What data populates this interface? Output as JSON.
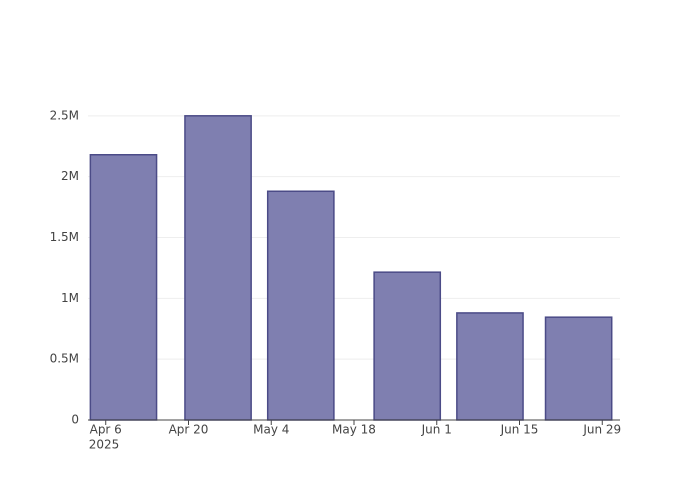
{
  "chart_data": {
    "type": "bar",
    "x": [
      "2025-04-09",
      "2025-04-25",
      "2025-05-09",
      "2025-05-27",
      "2025-06-10",
      "2025-06-25"
    ],
    "values": [
      2180000,
      2500000,
      1880000,
      1215000,
      880000,
      845000
    ],
    "color": "#7f7fb0",
    "xlim": [
      "2025-04-03",
      "2025-07-02"
    ],
    "xticks": [
      {
        "value": "2025-04-06",
        "label": "Apr 6"
      },
      {
        "value": "2025-04-20",
        "label": "Apr 20"
      },
      {
        "value": "2025-05-04",
        "label": "May 4"
      },
      {
        "value": "2025-05-18",
        "label": "May 18"
      },
      {
        "value": "2025-06-01",
        "label": "Jun 1"
      },
      {
        "value": "2025-06-15",
        "label": "Jun 15"
      },
      {
        "value": "2025-06-29",
        "label": "Jun 29"
      }
    ],
    "x_year_label": "2025",
    "ylim": [
      0,
      2630000
    ],
    "yticks": [
      0,
      {
        "value": 500000,
        "label": "0.5M"
      },
      {
        "value": 1000000,
        "label": "1M"
      },
      {
        "value": 1500000,
        "label": "1.5M"
      },
      {
        "value": 2000000,
        "label": "2M"
      },
      {
        "value": 2500000,
        "label": "2.5M"
      }
    ],
    "grid": true
  }
}
